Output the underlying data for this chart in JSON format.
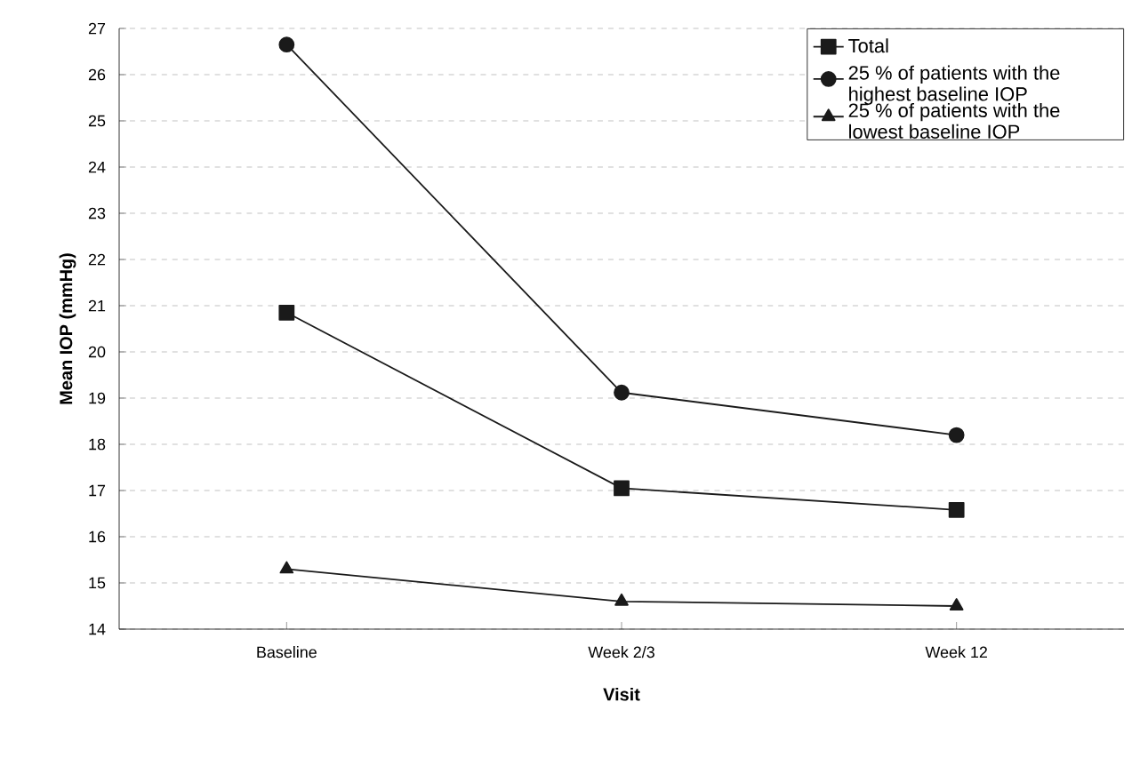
{
  "chart_data": {
    "type": "line",
    "xlabel": "Visit",
    "ylabel": "Mean IOP (mmHg)",
    "categories": [
      "Baseline",
      "Week 2/3",
      "Week 12"
    ],
    "series": [
      {
        "name": "Total",
        "color": "#1a1a1a",
        "marker": "square",
        "values": [
          20.85,
          17.05,
          16.58
        ]
      },
      {
        "name": "25 % of patients with the highest baseline IOP",
        "color": "#1a1a1a",
        "marker": "circle",
        "values": [
          26.65,
          19.12,
          18.2
        ]
      },
      {
        "name": "25 % of patients with the lowest baseline IOP",
        "color": "#1a1a1a",
        "marker": "triangle",
        "values": [
          15.3,
          14.6,
          14.5
        ]
      }
    ],
    "ylim": [
      14,
      27
    ],
    "yticks": [
      14,
      15,
      16,
      17,
      18,
      19,
      20,
      21,
      22,
      23,
      24,
      25,
      26,
      27
    ],
    "grid": "y",
    "legend": "top right",
    "line_style": "solid"
  }
}
